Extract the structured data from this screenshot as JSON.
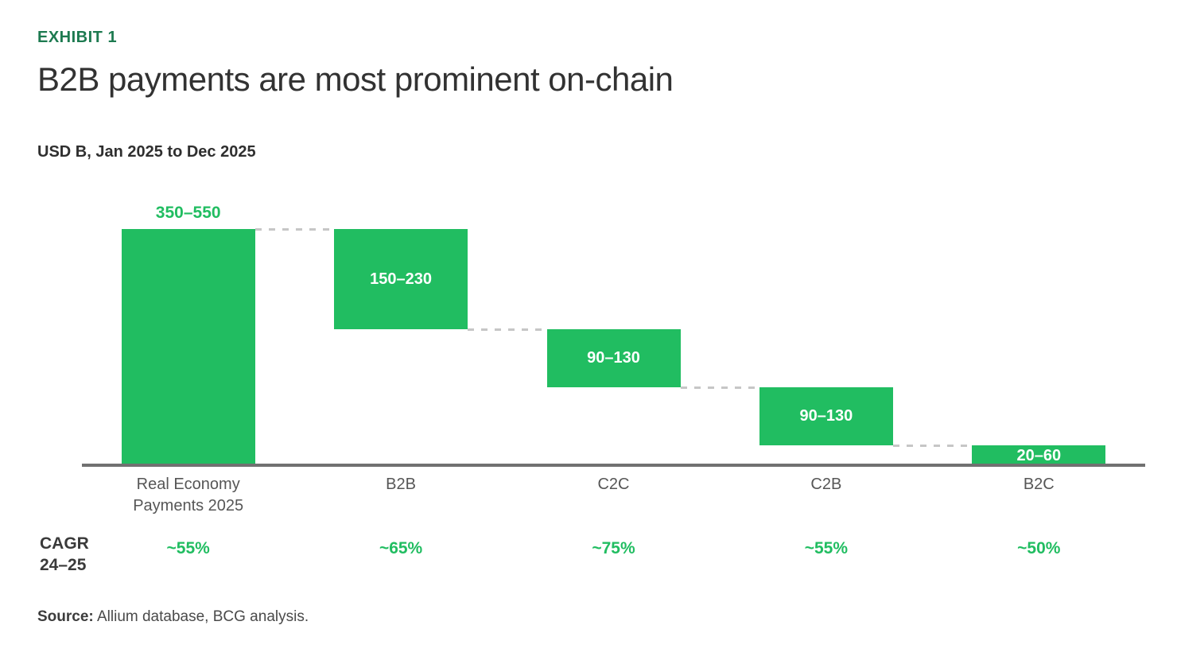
{
  "header": {
    "exhibit_label": "EXHIBIT 1",
    "title": "B2B payments are most prominent on-chain",
    "subtitle": "USD B, Jan 2025 to Dec 2025"
  },
  "cagr_row": {
    "label_line1": "CAGR",
    "label_line2": "24–25"
  },
  "footer": {
    "source_label": "Source:",
    "source_text": "Allium database, BCG analysis."
  },
  "colors": {
    "bar_green": "#21bd61",
    "exhibit_green": "#1d7a50",
    "title_gray": "#323232",
    "category_gray": "#565656",
    "axis_gray": "#717171",
    "connector_gray": "#c6c6c6",
    "inside_label_white": "#ffffff"
  },
  "chart_data": {
    "type": "bar",
    "variant": "waterfall",
    "title": "B2B payments are most prominent on-chain",
    "unit_label": "USD B, Jan 2025 to Dec 2025",
    "xlabel": "",
    "ylabel": "USD B",
    "ylim": [
      0,
      450
    ],
    "gridlines": false,
    "legend": "none",
    "bars": [
      {
        "category": "Real Economy Payments 2025",
        "category_lines": [
          "Real Economy",
          "Payments 2025"
        ],
        "value_label": "350–550",
        "range": [
          350,
          550
        ],
        "start": 450,
        "end": 0,
        "label_placement": "above",
        "cagr": "~55%"
      },
      {
        "category": "B2B",
        "category_lines": [
          "B2B"
        ],
        "value_label": "150–230",
        "range": [
          150,
          230
        ],
        "start": 450,
        "end": 260,
        "label_placement": "inside",
        "cagr": "~65%"
      },
      {
        "category": "C2C",
        "category_lines": [
          "C2C"
        ],
        "value_label": "90–130",
        "range": [
          90,
          130
        ],
        "start": 260,
        "end": 150,
        "label_placement": "inside",
        "cagr": "~75%"
      },
      {
        "category": "C2B",
        "category_lines": [
          "C2B"
        ],
        "value_label": "90–130",
        "range": [
          90,
          130
        ],
        "start": 150,
        "end": 40,
        "label_placement": "inside",
        "cagr": "~55%"
      },
      {
        "category": "B2C",
        "category_lines": [
          "B2C"
        ],
        "value_label": "20–60",
        "range": [
          20,
          60
        ],
        "start": 40,
        "end": 0,
        "label_placement": "inside",
        "cagr": "~50%"
      }
    ]
  }
}
